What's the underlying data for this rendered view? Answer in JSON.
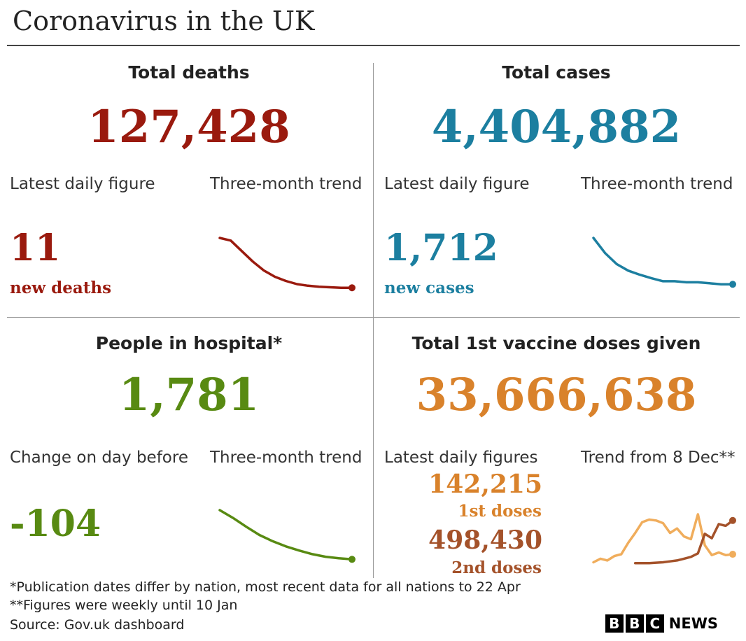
{
  "header": {
    "title": "Coronavirus in the UK"
  },
  "colors": {
    "deaths": "#9a1a0e",
    "cases": "#1c7fa0",
    "hospital": "#588a12",
    "vaccine": "#d9822b",
    "vaccine_light": "#f0ad5c",
    "vaccine_dark": "#a4522a"
  },
  "deaths": {
    "heading": "Total deaths",
    "total": "127,428",
    "latest_label": "Latest daily figure",
    "trend_label": "Three-month trend",
    "latest_value": "11",
    "latest_unit": "new deaths"
  },
  "cases": {
    "heading": "Total cases",
    "total": "4,404,882",
    "latest_label": "Latest daily figure",
    "trend_label": "Three-month trend",
    "latest_value": "1,712",
    "latest_unit": "new cases"
  },
  "hospital": {
    "heading": "People in hospital*",
    "total": "1,781",
    "change_label": "Change on day before",
    "trend_label": "Three-month trend",
    "change_value": "-104"
  },
  "vaccine": {
    "heading": "Total 1st vaccine doses given",
    "total": "33,666,638",
    "latest_label": "Latest daily figures",
    "trend_label": "Trend from 8 Dec**",
    "first_value": "142,215",
    "first_label": "1st doses",
    "second_value": "498,430",
    "second_label": "2nd doses"
  },
  "footer": {
    "note1": "*Publication dates differ by nation, most recent data for all nations to 22 Apr",
    "note2": "**Figures were weekly until 10 Jan",
    "source": "Source: Gov.uk dashboard"
  },
  "branding": {
    "logo_letters": [
      "B",
      "B",
      "C"
    ],
    "logo_word": "NEWS"
  },
  "chart_data": [
    {
      "type": "line",
      "name": "Deaths three-month trend",
      "title": "Three-month trend",
      "x": [
        0,
        1,
        2,
        3,
        4,
        5,
        6,
        7,
        8,
        9,
        10,
        11,
        12
      ],
      "series": [
        {
          "name": "new deaths",
          "values": [
            100,
            95,
            75,
            55,
            38,
            26,
            18,
            12,
            9,
            7,
            6,
            5,
            5
          ]
        }
      ],
      "ylim": [
        0,
        100
      ]
    },
    {
      "type": "line",
      "name": "Cases three-month trend",
      "title": "Three-month trend",
      "x": [
        0,
        1,
        2,
        3,
        4,
        5,
        6,
        7,
        8,
        9,
        10,
        11,
        12
      ],
      "series": [
        {
          "name": "new cases",
          "values": [
            100,
            70,
            48,
            35,
            27,
            20,
            14,
            14,
            12,
            12,
            10,
            8,
            8
          ]
        }
      ],
      "ylim": [
        0,
        100
      ]
    },
    {
      "type": "line",
      "name": "Hospital three-month trend",
      "title": "Three-month trend",
      "x": [
        0,
        1,
        2,
        3,
        4,
        5,
        6,
        7,
        8,
        9,
        10
      ],
      "series": [
        {
          "name": "people in hospital",
          "values": [
            100,
            85,
            68,
            52,
            40,
            30,
            22,
            15,
            10,
            7,
            5
          ]
        }
      ],
      "ylim": [
        0,
        100
      ]
    },
    {
      "type": "line",
      "name": "Vaccine doses trend from 8 Dec",
      "title": "Trend from 8 Dec**",
      "x": [
        0,
        1,
        2,
        3,
        4,
        5,
        6,
        7,
        8,
        9,
        10,
        11,
        12,
        13,
        14,
        15,
        16,
        17,
        18,
        19,
        20
      ],
      "series": [
        {
          "name": "1st doses",
          "values": [
            4,
            12,
            8,
            18,
            22,
            48,
            70,
            94,
            100,
            98,
            92,
            70,
            80,
            62,
            56,
            112,
            42,
            20,
            26,
            20,
            22
          ]
        },
        {
          "name": "2nd doses",
          "values": [
            null,
            null,
            null,
            null,
            null,
            null,
            2,
            2,
            2,
            3,
            4,
            6,
            8,
            12,
            16,
            24,
            68,
            58,
            90,
            86,
            98
          ]
        }
      ],
      "ylim": [
        0,
        115
      ]
    }
  ]
}
